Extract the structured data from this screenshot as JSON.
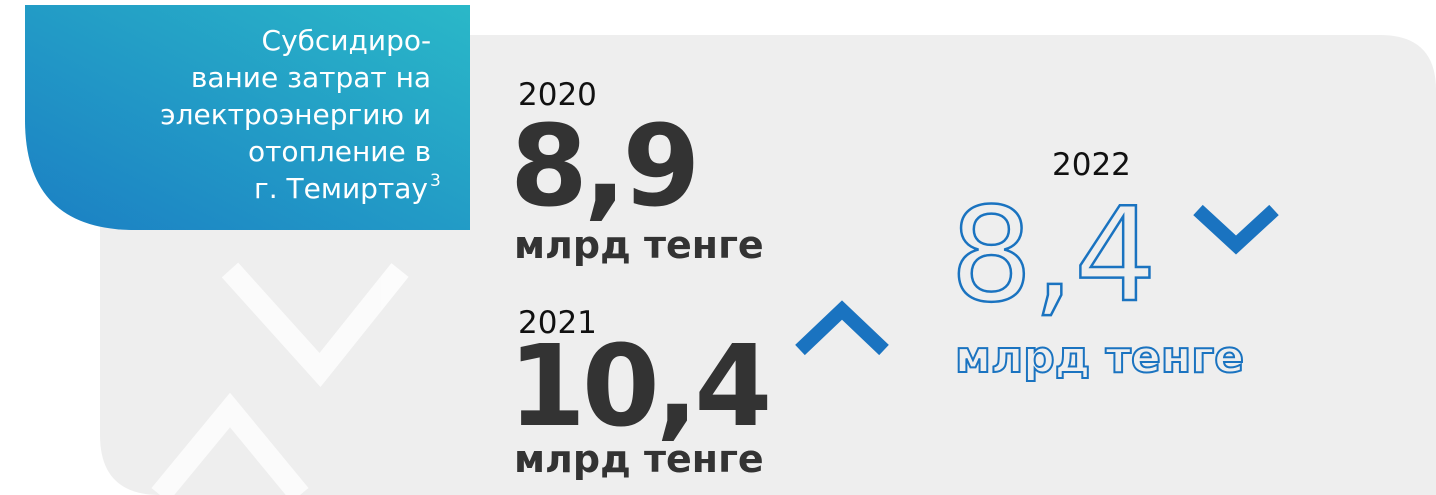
{
  "header": {
    "title_lines": [
      "Субсидиро-",
      "вание затрат на",
      "электроэнергию и",
      "отопление в",
      "г. Темиртау"
    ],
    "footnote": "3"
  },
  "items": [
    {
      "year": "2020",
      "value": "8,9",
      "unit": "млрд тенге"
    },
    {
      "year": "2021",
      "value": "10,4",
      "unit": "млрд тенге"
    },
    {
      "year": "2022",
      "value": "8,4",
      "unit": "млрд тенге"
    }
  ]
}
